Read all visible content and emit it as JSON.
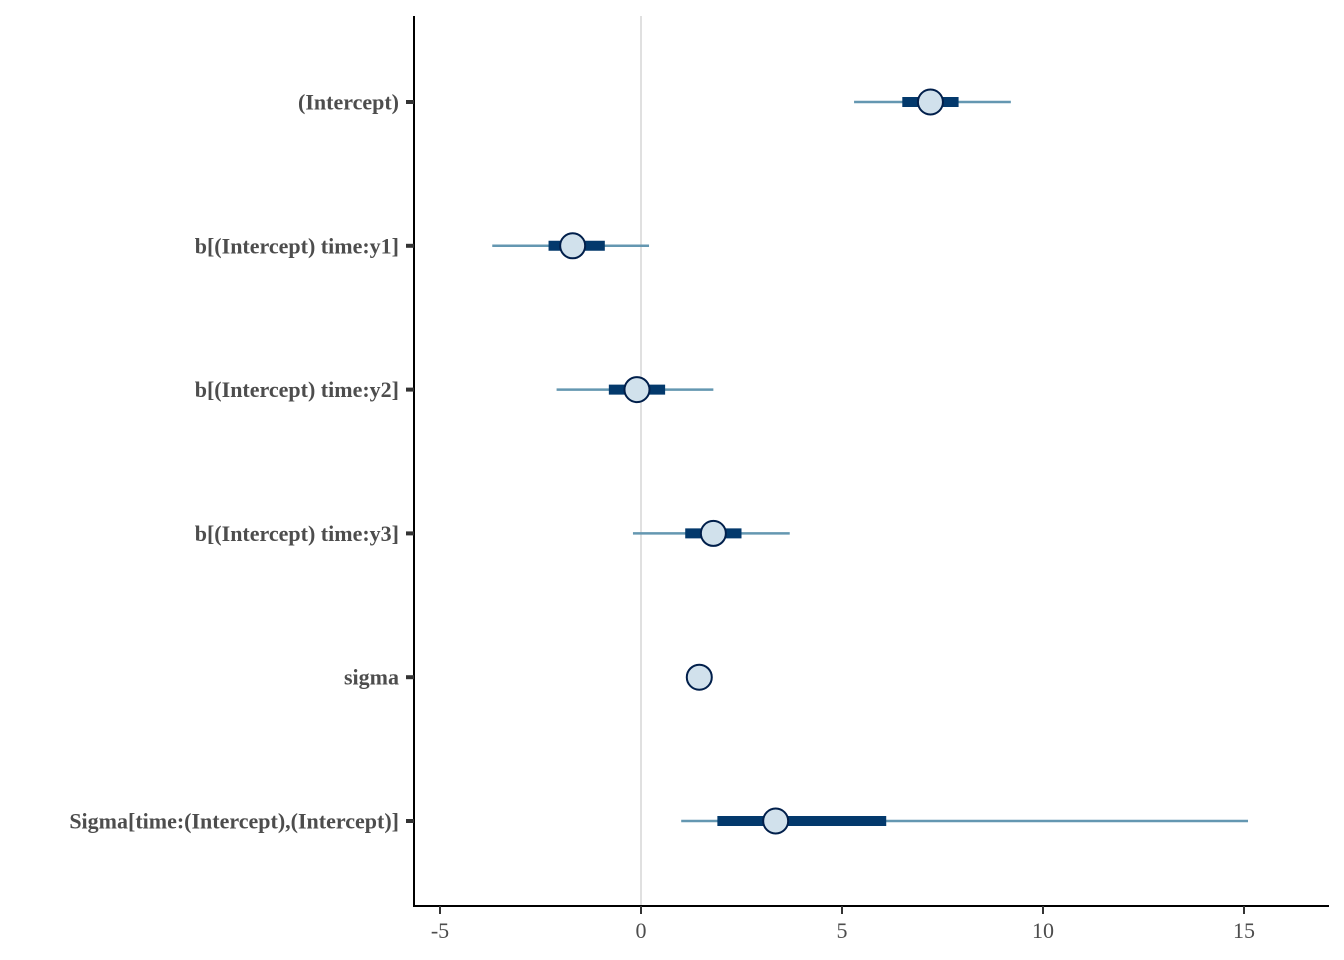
{
  "chart_data": {
    "type": "interval",
    "title": "",
    "xlabel": "",
    "ylabel": "",
    "xlim": [
      -5.7,
      17.0
    ],
    "xticks": [
      -5,
      0,
      5,
      10,
      15
    ],
    "xtick_labels": [
      "-5",
      "0",
      "5",
      "10",
      "15"
    ],
    "reference_line": 0,
    "grid": false,
    "parameters": [
      {
        "label": "(Intercept)",
        "median": 7.2,
        "inner": [
          6.5,
          7.9
        ],
        "outer": [
          5.3,
          9.2
        ]
      },
      {
        "label": "b[(Intercept) time:y1]",
        "median": -1.7,
        "inner": [
          -2.3,
          -0.9
        ],
        "outer": [
          -3.7,
          0.2
        ]
      },
      {
        "label": "b[(Intercept) time:y2]",
        "median": -0.1,
        "inner": [
          -0.8,
          0.6
        ],
        "outer": [
          -2.1,
          1.8
        ]
      },
      {
        "label": "b[(Intercept) time:y3]",
        "median": 1.8,
        "inner": [
          1.1,
          2.5
        ],
        "outer": [
          -0.2,
          3.7
        ]
      },
      {
        "label": "sigma",
        "median": 1.45,
        "inner": [
          1.4,
          1.5
        ],
        "outer": [
          1.35,
          1.55
        ]
      },
      {
        "label": "Sigma[time:(Intercept),(Intercept)]",
        "median": 3.35,
        "inner": [
          1.9,
          6.1
        ],
        "outer": [
          1.0,
          15.1
        ]
      }
    ],
    "colors": {
      "outer_interval": "#6497b1",
      "inner_interval": "#03396c",
      "point_fill": "#d1e1ec",
      "point_stroke": "#011f4b",
      "reference_line": "#e0e0e0",
      "axis": "#000000",
      "label": "#4d4d4d"
    }
  }
}
